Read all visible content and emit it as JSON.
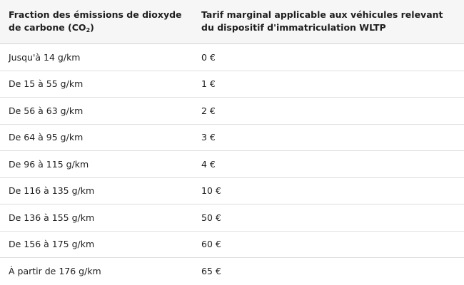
{
  "table": {
    "headers": {
      "col1_main": "Fraction des émissions de dioxyde de carbone (CO",
      "col1_sub": "2",
      "col1_end": ")",
      "col2": "Tarif marginal applicable aux véhicules relevant du dispositif d'immatriculation WLTP"
    },
    "rows": [
      {
        "fraction": "Jusqu'à 14 g/km",
        "tarif": "0 €"
      },
      {
        "fraction": "De 15 à 55 g/km",
        "tarif": "1 €"
      },
      {
        "fraction": "De 56 à 63 g/km",
        "tarif": "2 €"
      },
      {
        "fraction": "De 64 à 95 g/km",
        "tarif": "3 €"
      },
      {
        "fraction": "De 96 à 115 g/km",
        "tarif": "4 €"
      },
      {
        "fraction": "De 116 à 135 g/km",
        "tarif": "10 €"
      },
      {
        "fraction": "De 136 à 155 g/km",
        "tarif": "50 €"
      },
      {
        "fraction": "De 156 à 175 g/km",
        "tarif": "60 €"
      },
      {
        "fraction": "À partir de 176 g/km",
        "tarif": "65 €"
      }
    ]
  }
}
